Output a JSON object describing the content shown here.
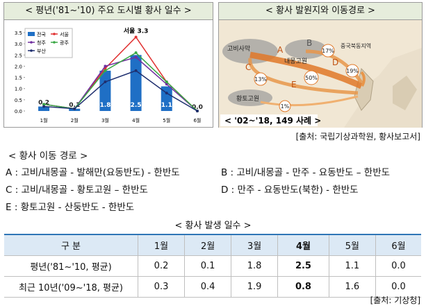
{
  "left_panel": {
    "title": "< 평년('81~'10) 주요 도시별 황사 일수 >"
  },
  "chart_data": {
    "type": "bar",
    "categories": [
      "1월",
      "2월",
      "3월",
      "4월",
      "5월",
      "6월"
    ],
    "series": [
      {
        "name": "전국",
        "type": "bar",
        "color": "#1f6fc5",
        "values": [
          0.2,
          0.1,
          1.8,
          2.5,
          1.1,
          0
        ],
        "value_labels": [
          "0.2",
          "0.1",
          "1.8",
          "2.5",
          "1.1",
          "0.0"
        ]
      },
      {
        "name": "서울",
        "type": "line",
        "color": "#e03030",
        "values": [
          0.3,
          0.1,
          1.9,
          3.3,
          1.3,
          0
        ]
      },
      {
        "name": "청주",
        "type": "line",
        "color": "#7030a0",
        "values": [
          0.3,
          0.1,
          2.0,
          2.4,
          1.2,
          0
        ]
      },
      {
        "name": "광주",
        "type": "line",
        "color": "#3aa845",
        "values": [
          0.3,
          0.1,
          1.8,
          2.6,
          1.3,
          0
        ]
      },
      {
        "name": "부산",
        "type": "line",
        "color": "#1f2f6f",
        "values": [
          0.2,
          0.1,
          1.3,
          1.8,
          0.8,
          0
        ]
      }
    ],
    "annotation": "서울 3.3",
    "ylim": [
      0,
      3.5
    ],
    "yticks": [
      {
        "value": 0,
        "label": "0.0"
      },
      {
        "value": 0.5,
        "label": "0.5"
      },
      {
        "value": 1,
        "label": "1.0"
      },
      {
        "value": 1.5,
        "label": "1.5"
      },
      {
        "value": 2,
        "label": "2.0"
      },
      {
        "value": 2.5,
        "label": "2.5"
      },
      {
        "value": 3,
        "label": "3.0"
      },
      {
        "value": 3.5,
        "label": "3.5"
      }
    ],
    "grid": false
  },
  "map_panel": {
    "title": "< 황사 발원지와 이동경로 >",
    "labels": [
      "고비사막",
      "A",
      "B",
      "내몽고원",
      "17%",
      "중국북동지역",
      "19%",
      "50%",
      "13%",
      "C",
      "D",
      "E",
      "황토고원",
      "1%"
    ],
    "caption": "< '02~'18, 149 사례 >"
  },
  "source1": "[출처: 국립기상과학원, 황사보고서]",
  "routes": {
    "title": "< 황사 이동 경로 >",
    "items": [
      "A : 고비/내몽골 - 발해만(요동반도) - 한반도",
      "B : 고비/내몽골 - 만주 - 요동반도 – 한반도",
      "C : 고비/내몽골 - 황토고원 – 한반도",
      "D : 만주 - 요동반도(북한) - 한반도",
      "E : 황토고원 - 산둥반도 - 한반도"
    ]
  },
  "table": {
    "title": "< 황사 발생 일수 >",
    "header": [
      "구 분",
      "1월",
      "2월",
      "3월",
      "4월",
      "5월",
      "6월"
    ],
    "rows": [
      [
        "평년('81~'10, 평균)",
        "0.2",
        "0.1",
        "1.8",
        "2.5",
        "1.1",
        "0.0"
      ],
      [
        "최근 10년('09~'18, 평균)",
        "0.3",
        "0.4",
        "1.9",
        "0.8",
        "1.6",
        "0.0"
      ]
    ]
  },
  "source2": "[출처: 기상청]"
}
